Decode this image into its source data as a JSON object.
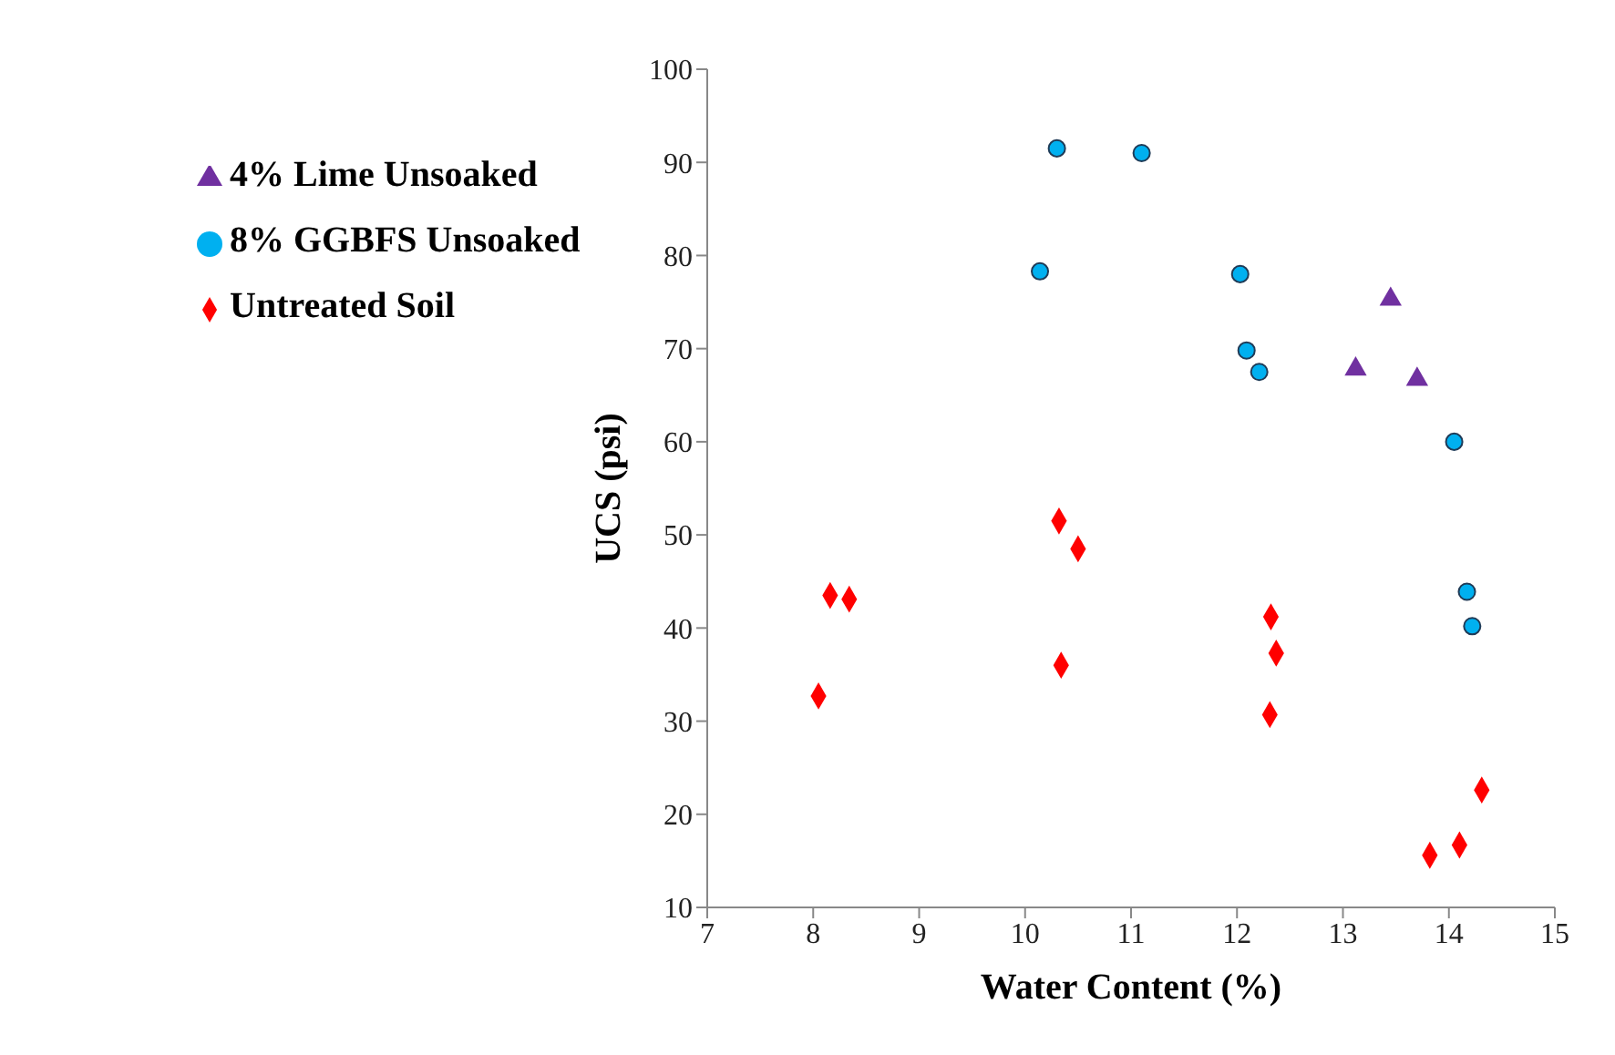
{
  "chart_data": {
    "type": "scatter",
    "xlabel": "Water Content (%)",
    "ylabel": "UCS (psi)",
    "xlim": [
      7,
      15
    ],
    "xticks": [
      7,
      8,
      9,
      10,
      11,
      12,
      13,
      14,
      15
    ],
    "ylim": [
      10,
      100
    ],
    "yticks": [
      10,
      20,
      30,
      40,
      50,
      60,
      70,
      80,
      90,
      100
    ],
    "grid": false,
    "legend": "top left",
    "series": [
      {
        "name": "Untreated Soil",
        "color": "#ff0000",
        "marker": "diamond",
        "x": [
          8.05,
          8.16,
          8.34,
          10.32,
          10.5,
          10.34,
          12.32,
          12.37,
          12.31,
          13.82,
          14.1,
          14.31
        ],
        "values": [
          32.7,
          43.5,
          43.1,
          51.5,
          48.5,
          36.0,
          41.2,
          37.3,
          30.7,
          15.6,
          16.7,
          22.6
        ]
      },
      {
        "name": "8% GGBFS Unsoaked",
        "color": "#00b0f0",
        "marker": "circle",
        "x": [
          10.3,
          11.1,
          10.14,
          12.03,
          12.09,
          12.21,
          14.05,
          14.17,
          14.22
        ],
        "values": [
          91.5,
          91.0,
          78.3,
          78.0,
          69.8,
          67.5,
          60.0,
          43.9,
          40.2
        ]
      },
      {
        "name": "4% Lime Unsoaked",
        "color": "#7030a0",
        "marker": "triangle",
        "x": [
          13.12,
          13.45,
          13.7
        ],
        "values": [
          67.8,
          75.3,
          66.7
        ]
      }
    ]
  }
}
